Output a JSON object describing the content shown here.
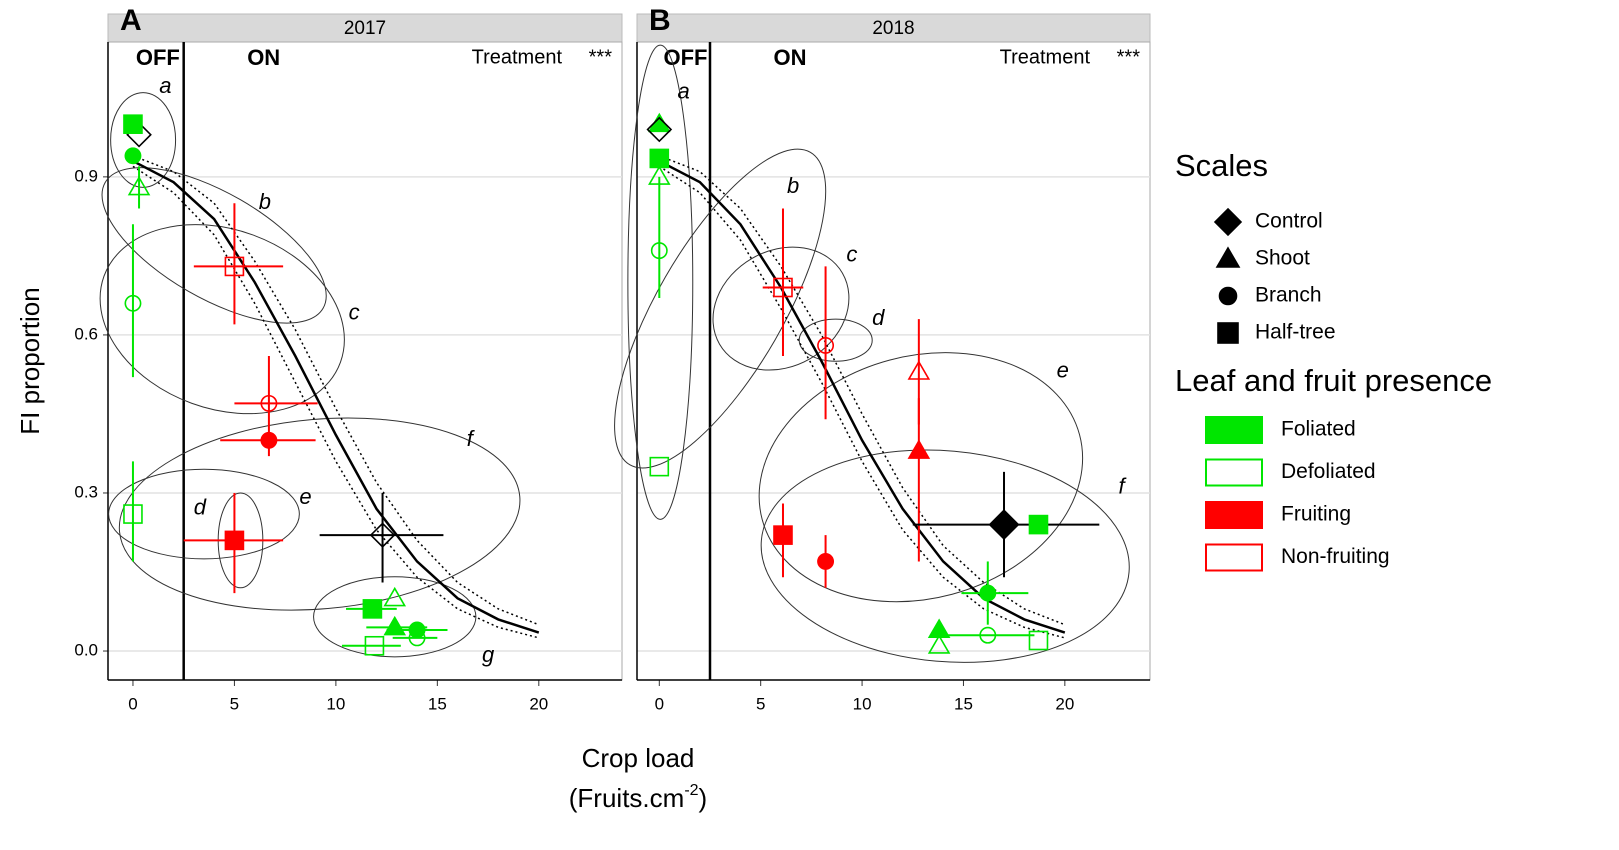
{
  "figure": {
    "ylabel": "FI proportion",
    "xlabel": "Crop load",
    "xlabel_unit": "(Fruits.cm",
    "xlabel_sup": "-2",
    "xlabel_unit_end": ")"
  },
  "legend": {
    "scales": {
      "title": "Scales",
      "items": [
        "Control",
        "Shoot",
        "Branch",
        "Half-tree"
      ]
    },
    "presence": {
      "title": "Leaf and fruit presence",
      "items": [
        {
          "name": "Foliated",
          "color": "#00e600",
          "filled": true
        },
        {
          "name": "Defoliated",
          "color": "#00e600",
          "filled": false
        },
        {
          "name": "Fruiting",
          "color": "#ff0000",
          "filled": true
        },
        {
          "name": "Non-fruiting",
          "color": "#ff0000",
          "filled": false
        }
      ]
    }
  },
  "chart_data": [
    {
      "type": "scatter",
      "panel": "A",
      "strip": "2017",
      "off_label": "OFF",
      "on_label": "ON",
      "test_label": "Treatment",
      "significance": "***",
      "threshold": 2.5,
      "xlim": [
        -1.23,
        24.1
      ],
      "ylim": [
        -0.055,
        1.156
      ],
      "xticks": [
        0,
        5,
        10,
        15,
        20
      ],
      "yticks": [
        {
          "value": 0,
          "label": "0.0"
        },
        0.3,
        0.6,
        0.9
      ],
      "grid": true,
      "fit": {
        "x": [
          0,
          2,
          4,
          6,
          8,
          10,
          12,
          14,
          16,
          18,
          20
        ],
        "y": [
          0.93,
          0.89,
          0.82,
          0.7,
          0.56,
          0.41,
          0.27,
          0.17,
          0.1,
          0.06,
          0.035
        ],
        "lower": [
          0.92,
          0.87,
          0.79,
          0.66,
          0.51,
          0.36,
          0.23,
          0.14,
          0.08,
          0.045,
          0.025
        ],
        "upper": [
          0.94,
          0.91,
          0.85,
          0.74,
          0.61,
          0.46,
          0.32,
          0.21,
          0.13,
          0.08,
          0.05
        ]
      },
      "points": [
        {
          "scale": "Control",
          "color": "#000000",
          "filled": false,
          "x": 0.3,
          "y": 0.98,
          "xerr": null,
          "yerr": null
        },
        {
          "scale": "Half-tree",
          "color": "#00e600",
          "filled": true,
          "x": 0,
          "y": 1.0,
          "xerr": null,
          "yerr": null
        },
        {
          "scale": "Branch",
          "color": "#00e600",
          "filled": true,
          "x": 0,
          "y": 0.94,
          "xerr": null,
          "yerr": null
        },
        {
          "scale": "Shoot",
          "color": "#00e600",
          "filled": false,
          "x": 0.3,
          "y": 0.88,
          "xerr": null,
          "yerr": [
            0.84,
            0.92
          ]
        },
        {
          "scale": "Branch",
          "color": "#00e600",
          "filled": false,
          "x": 0,
          "y": 0.66,
          "xerr": null,
          "yerr": [
            0.52,
            0.81
          ]
        },
        {
          "scale": "Half-tree",
          "color": "#00e600",
          "filled": false,
          "x": 0,
          "y": 0.26,
          "xerr": null,
          "yerr": [
            0.17,
            0.36
          ]
        },
        {
          "scale": "Half-tree",
          "color": "#ff0000",
          "filled": false,
          "x": 5,
          "y": 0.73,
          "xerr": [
            3,
            7.4
          ],
          "yerr": [
            0.62,
            0.85
          ]
        },
        {
          "scale": "Branch",
          "color": "#ff0000",
          "filled": false,
          "x": 6.7,
          "y": 0.47,
          "xerr": [
            5,
            9.1
          ],
          "yerr": [
            0.37,
            0.56
          ]
        },
        {
          "scale": "Branch",
          "color": "#ff0000",
          "filled": true,
          "x": 6.7,
          "y": 0.4,
          "xerr": [
            4.3,
            9.0
          ],
          "yerr": null
        },
        {
          "scale": "Half-tree",
          "color": "#ff0000",
          "filled": true,
          "x": 5,
          "y": 0.21,
          "xerr": [
            2.5,
            7.4
          ],
          "yerr": [
            0.11,
            0.3
          ]
        },
        {
          "scale": "Control",
          "color": "#000000",
          "filled": false,
          "x": 12.3,
          "y": 0.22,
          "xerr": [
            9.2,
            15.3
          ],
          "yerr": [
            0.13,
            0.3
          ]
        },
        {
          "scale": "Half-tree",
          "color": "#00e600",
          "filled": true,
          "x": 11.8,
          "y": 0.08,
          "xerr": [
            10.5,
            13
          ],
          "yerr": null
        },
        {
          "scale": "Shoot",
          "color": "#00e600",
          "filled": false,
          "x": 12.9,
          "y": 0.1,
          "xerr": null,
          "yerr": null
        },
        {
          "scale": "Shoot",
          "color": "#00e600",
          "filled": true,
          "x": 12.9,
          "y": 0.045,
          "xerr": [
            11.5,
            14.5
          ],
          "yerr": null
        },
        {
          "scale": "Branch",
          "color": "#00e600",
          "filled": true,
          "x": 14,
          "y": 0.04,
          "xerr": [
            12.5,
            15.5
          ],
          "yerr": null
        },
        {
          "scale": "Branch",
          "color": "#00e600",
          "filled": false,
          "x": 14,
          "y": 0.025,
          "xerr": [
            12.8,
            15
          ],
          "yerr": null
        },
        {
          "scale": "Half-tree",
          "color": "#00e600",
          "filled": false,
          "x": 11.9,
          "y": 0.01,
          "xerr": [
            10.3,
            13.2
          ],
          "yerr": null
        }
      ],
      "groups": [
        {
          "label": "a",
          "cx": 0.5,
          "cy": 0.97,
          "rx": 1.6,
          "ry": 0.09,
          "rotation": 0,
          "lx": 1.6,
          "ly": 1.07
        },
        {
          "label": "b",
          "cx": 4.0,
          "cy": 0.77,
          "rx": 6.2,
          "ry": 0.1,
          "rotation": 30,
          "lx": 6.5,
          "ly": 0.85
        },
        {
          "label": "c",
          "cx": 4.4,
          "cy": 0.63,
          "rx": 6.2,
          "ry": 0.17,
          "rotation": 20,
          "lx": 10.9,
          "ly": 0.64
        },
        {
          "label": "d",
          "cx": 5.3,
          "cy": 0.21,
          "rx": 1.1,
          "ry": 0.09,
          "rotation": 0,
          "lx": 3.3,
          "ly": 0.27
        },
        {
          "label": "e",
          "cx": 3.5,
          "cy": 0.26,
          "rx": 4.7,
          "ry": 0.085,
          "rotation": 0,
          "lx": 8.5,
          "ly": 0.29
        },
        {
          "label": "f",
          "cx": 9.2,
          "cy": 0.26,
          "rx": 9.9,
          "ry": 0.18,
          "rotation": -5,
          "lx": 16.6,
          "ly": 0.4
        },
        {
          "label": "g",
          "cx": 12.9,
          "cy": 0.065,
          "rx": 4.0,
          "ry": 0.076,
          "rotation": 0,
          "lx": 17.5,
          "ly": -0.01
        }
      ]
    },
    {
      "type": "scatter",
      "panel": "B",
      "strip": "2018",
      "off_label": "OFF",
      "on_label": "ON",
      "test_label": "Treatment",
      "significance": "***",
      "threshold": 2.5,
      "xlim": [
        -1.1,
        24.2
      ],
      "ylim": [
        -0.055,
        1.156
      ],
      "xticks": [
        0,
        5,
        10,
        15,
        20
      ],
      "yticks": [
        0,
        0.3,
        0.6,
        0.9
      ],
      "grid": true,
      "fit": {
        "x": [
          0,
          2,
          4,
          6,
          8,
          10,
          12,
          14,
          16,
          18,
          20
        ],
        "y": [
          0.93,
          0.89,
          0.81,
          0.69,
          0.55,
          0.4,
          0.27,
          0.17,
          0.1,
          0.06,
          0.035
        ],
        "lower": [
          0.92,
          0.87,
          0.78,
          0.65,
          0.51,
          0.36,
          0.23,
          0.14,
          0.08,
          0.045,
          0.025
        ],
        "upper": [
          0.94,
          0.91,
          0.84,
          0.73,
          0.6,
          0.45,
          0.31,
          0.2,
          0.13,
          0.08,
          0.05
        ]
      },
      "points": [
        {
          "scale": "Shoot",
          "color": "#00e600",
          "filled": true,
          "x": 0,
          "y": 1.0,
          "xerr": null,
          "yerr": null
        },
        {
          "scale": "Control",
          "color": "#000000",
          "filled": false,
          "x": 0,
          "y": 0.99,
          "xerr": null,
          "yerr": null
        },
        {
          "scale": "Half-tree",
          "color": "#00e600",
          "filled": true,
          "x": 0,
          "y": 0.935,
          "xerr": null,
          "yerr": null
        },
        {
          "scale": "Shoot",
          "color": "#00e600",
          "filled": false,
          "x": 0,
          "y": 0.9,
          "xerr": null,
          "yerr": null
        },
        {
          "scale": "Branch",
          "color": "#00e600",
          "filled": false,
          "x": 0,
          "y": 0.76,
          "xerr": null,
          "yerr": [
            0.67,
            0.9
          ]
        },
        {
          "scale": "Half-tree",
          "color": "#00e600",
          "filled": false,
          "x": 0,
          "y": 0.35,
          "xerr": null,
          "yerr": null
        },
        {
          "scale": "Half-tree",
          "color": "#ff0000",
          "filled": false,
          "x": 6.1,
          "y": 0.69,
          "xerr": [
            5.1,
            7.1
          ],
          "yerr": [
            0.56,
            0.84
          ]
        },
        {
          "scale": "Branch",
          "color": "#ff0000",
          "filled": false,
          "x": 8.2,
          "y": 0.58,
          "xerr": null,
          "yerr": [
            0.44,
            0.73
          ]
        },
        {
          "scale": "Shoot",
          "color": "#ff0000",
          "filled": false,
          "x": 12.8,
          "y": 0.53,
          "xerr": null,
          "yerr": [
            0.43,
            0.63
          ]
        },
        {
          "scale": "Shoot",
          "color": "#ff0000",
          "filled": true,
          "x": 12.8,
          "y": 0.38,
          "xerr": null,
          "yerr": [
            0.17,
            0.48
          ]
        },
        {
          "scale": "Half-tree",
          "color": "#ff0000",
          "filled": true,
          "x": 6.1,
          "y": 0.22,
          "xerr": null,
          "yerr": [
            0.14,
            0.28
          ]
        },
        {
          "scale": "Branch",
          "color": "#ff0000",
          "filled": true,
          "x": 8.2,
          "y": 0.17,
          "xerr": null,
          "yerr": [
            0.12,
            0.22
          ]
        },
        {
          "scale": "Control",
          "color": "#000000",
          "filled": true,
          "x": 17,
          "y": 0.24,
          "xerr": [
            12.5,
            21.7
          ],
          "yerr": [
            0.14,
            0.34
          ]
        },
        {
          "scale": "Half-tree",
          "color": "#00e600",
          "filled": true,
          "x": 18.7,
          "y": 0.24,
          "xerr": null,
          "yerr": null
        },
        {
          "scale": "Branch",
          "color": "#00e600",
          "filled": true,
          "x": 16.2,
          "y": 0.11,
          "xerr": [
            14.9,
            18.2
          ],
          "yerr": [
            0.05,
            0.17
          ]
        },
        {
          "scale": "Branch",
          "color": "#00e600",
          "filled": false,
          "x": 16.2,
          "y": 0.03,
          "xerr": [
            13.4,
            18.5
          ],
          "yerr": null
        },
        {
          "scale": "Shoot",
          "color": "#00e600",
          "filled": true,
          "x": 13.8,
          "y": 0.04,
          "xerr": null,
          "yerr": null
        },
        {
          "scale": "Shoot",
          "color": "#00e600",
          "filled": false,
          "x": 13.8,
          "y": 0.01,
          "xerr": null,
          "yerr": null
        },
        {
          "scale": "Half-tree",
          "color": "#00e600",
          "filled": false,
          "x": 18.7,
          "y": 0.02,
          "xerr": null,
          "yerr": null
        }
      ],
      "groups": [
        {
          "label": "a",
          "cx": 0.05,
          "cy": 0.7,
          "rx": 1.6,
          "ry": 0.45,
          "rotation": 0,
          "lx": 1.2,
          "ly": 1.06
        },
        {
          "label": "b",
          "cx": 3.0,
          "cy": 0.65,
          "rx": 8.9,
          "ry": 0.12,
          "rotation": -60,
          "lx": 6.6,
          "ly": 0.88
        },
        {
          "label": "c",
          "cx": 6.0,
          "cy": 0.65,
          "rx": 3.5,
          "ry": 0.11,
          "rotation": -30,
          "lx": 9.5,
          "ly": 0.75
        },
        {
          "label": "d",
          "cx": 8.7,
          "cy": 0.59,
          "rx": 1.8,
          "ry": 0.04,
          "rotation": 0,
          "lx": 10.8,
          "ly": 0.63
        },
        {
          "label": "e",
          "cx": 12.9,
          "cy": 0.33,
          "rx": 8.1,
          "ry": 0.23,
          "rotation": -15,
          "lx": 19.9,
          "ly": 0.53
        },
        {
          "label": "f",
          "cx": 14.1,
          "cy": 0.18,
          "rx": 9.1,
          "ry": 0.2,
          "rotation": 5,
          "lx": 22.8,
          "ly": 0.31
        }
      ]
    }
  ]
}
